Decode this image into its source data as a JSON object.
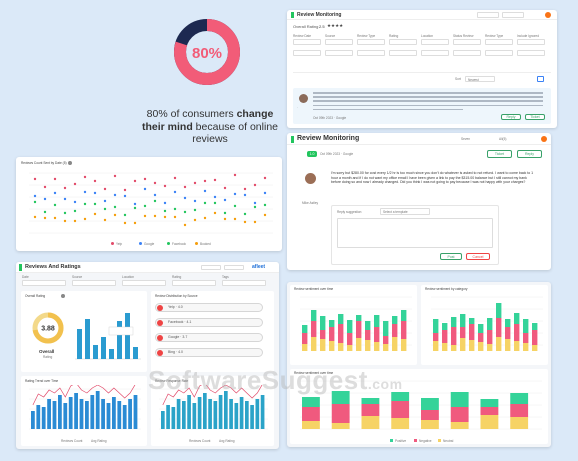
{
  "stat": {
    "percent_label": "80%",
    "percent_value": 0.8,
    "line1_prefix": "80% of consumers ",
    "line1_bold": "change",
    "line2_bold": "their mind",
    "line2_suffix": " because of online",
    "line3": "reviews",
    "accent": "#f25c78",
    "ring_dark": "#1d2951"
  },
  "panel_top": {
    "title": "Review Monitoring",
    "overall_label": "Overall Rating",
    "overall_value": "2.5",
    "filters": [
      "Review Date",
      "Source",
      "Review Type",
      "Rating",
      "Location",
      "Status Review",
      "Review Type",
      "Include Ignored"
    ],
    "sort_label": "Sort",
    "sort_value": "Newest",
    "review_meta": "Oct 09th 2023 · Google",
    "reply_button": "Reply",
    "ticket_button": "Ticket"
  },
  "panel_review": {
    "title": "Review Monitoring",
    "select_a": "Seven",
    "select_b": "All(5)",
    "badge": "1.0",
    "meta": "Oct 09th 2023 · Google",
    "ticket_button": "Ticket",
    "reply_button": "Reply",
    "review_text": "I'm sorry but $280.00 for cost every 1/2 hr is too much since you don't do whatever is asked to not refund. I want to come back to 1 hour a month and if I do not want my office email I have been given a link to pay the $315.00 balance but I still cannot my bank before doing so and now I already changed. Did you think I was not going to pay because I was not happy with your charges?",
    "reviewer_name": "Mike Astley",
    "reply_suggestion_label": "Reply suggestion",
    "select_placeholder": "Select a template",
    "post_button": "Post",
    "cancel_button": "Cancel"
  },
  "panel_line": {
    "title": "Reviews Count Sent by Date (5)",
    "legend": [
      "Yelp",
      "Google",
      "Facebook",
      "Booked"
    ]
  },
  "panel_ratings": {
    "title": "Reviews And Ratings",
    "logo": "afleet",
    "filters": [
      "Date",
      "Source",
      "Location",
      "Rating",
      "Tags"
    ],
    "overall_score": "3.88",
    "overall_label": "Overall",
    "overall_sub": "Rating",
    "source_title": "Review Distribution by Source",
    "sources": [
      {
        "label": "Yelp",
        "value": "4.0",
        "color": "#ef4444"
      },
      {
        "label": "Facebook",
        "value": "4.1",
        "color": "#ef4444"
      },
      {
        "label": "Google",
        "value": "3.7",
        "color": "#ef4444"
      },
      {
        "label": "Bing",
        "value": "4.0",
        "color": "#ef4444"
      }
    ],
    "bars_title": "Overall Rating",
    "trend_title": "Rating Trend over Time",
    "response_title": "Review Response Rate",
    "legend_a": "Reviews Count",
    "legend_b": "Avg Rating"
  },
  "panel_sentiment": {
    "title_left": "Review sentiment over time",
    "title_right": "Review sentiment by category",
    "title_bottom": "Review sentiment over time",
    "legend": [
      "Positive",
      "Negative",
      "Neutral"
    ],
    "colors": {
      "positive": "#34d399",
      "negative": "#f05a7e",
      "neutral": "#f6d365"
    }
  },
  "watermark": {
    "text": "SoftwareSuggest",
    "suffix": ".com"
  }
}
